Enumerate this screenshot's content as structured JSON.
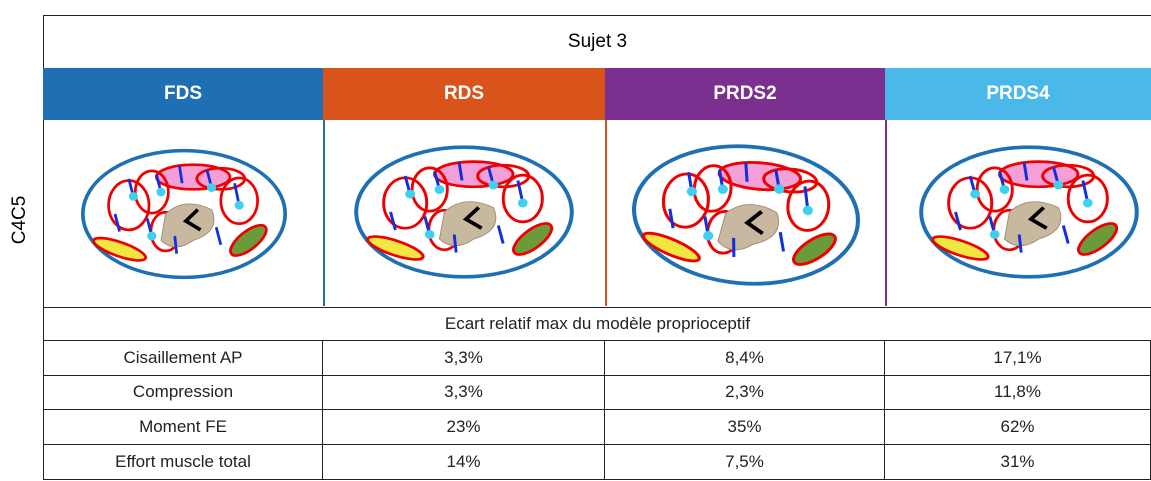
{
  "table": {
    "title": "Sujet 3",
    "row_label": "C4C5",
    "headers": [
      "FDS",
      "RDS",
      "PRDS2",
      "PRDS4"
    ],
    "subtitle": "Ecart relatif max du modèle proprioceptif",
    "rows": [
      [
        "Cisaillement AP",
        "3,3%",
        "8,4%",
        "17,1%"
      ],
      [
        "Compression",
        "3,3%",
        "2,3%",
        "11,8%"
      ],
      [
        "Moment FE",
        "23%",
        "35%",
        "62%"
      ],
      [
        "Effort muscle total",
        "14%",
        "7,5%",
        "31%"
      ]
    ]
  }
}
